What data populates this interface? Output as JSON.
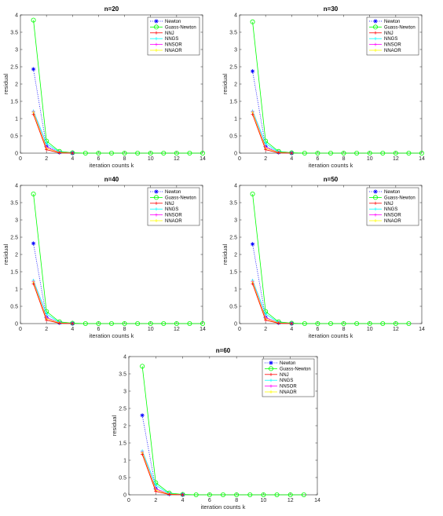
{
  "chart_data": [
    {
      "type": "line",
      "title": "n=20",
      "xlabel": "iteration counts k",
      "ylabel": "residual",
      "xlim": [
        0,
        14
      ],
      "ylim": [
        0,
        4
      ],
      "xticks": [
        0,
        2,
        4,
        6,
        8,
        10,
        12,
        14
      ],
      "yticks": [
        0,
        0.5,
        1,
        1.5,
        2,
        2.5,
        3,
        3.5,
        4
      ],
      "legend_position": "top-right",
      "series": [
        {
          "name": "Newton",
          "color": "#0000ff",
          "marker": "star",
          "line": "dotted",
          "x": [
            1,
            2,
            3,
            4
          ],
          "values": [
            2.43,
            0.2,
            0.02,
            0.0
          ]
        },
        {
          "name": "Guass-Newton",
          "color": "#00ff00",
          "marker": "circle",
          "line": "solid",
          "x": [
            1,
            2,
            3,
            4,
            5,
            6,
            7,
            8,
            9,
            10,
            11,
            12,
            13,
            14
          ],
          "values": [
            3.85,
            0.35,
            0.05,
            0.01,
            0,
            0,
            0,
            0,
            0,
            0,
            0,
            0,
            0,
            0
          ]
        },
        {
          "name": "NNJ",
          "color": "#ff0000",
          "marker": "plus",
          "line": "solid",
          "x": [
            1,
            2,
            3,
            4
          ],
          "values": [
            1.12,
            0.1,
            0.01,
            0.0
          ]
        },
        {
          "name": "NNGS",
          "color": "#00ffff",
          "marker": "plus",
          "line": "solid",
          "x": [
            1,
            2,
            3,
            4
          ],
          "values": [
            1.22,
            0.28,
            0.03,
            0.0
          ]
        },
        {
          "name": "NNSOR",
          "color": "#ff00ff",
          "marker": "plus",
          "line": "solid",
          "x": [
            1,
            2,
            3,
            4
          ],
          "values": [
            1.2,
            0.17,
            0.02,
            0.0
          ]
        },
        {
          "name": "NNAOR",
          "color": "#ffff00",
          "marker": "plus",
          "line": "solid",
          "x": [
            1,
            2,
            3,
            4
          ],
          "values": [
            1.18,
            0.14,
            0.02,
            0.0
          ]
        }
      ]
    },
    {
      "type": "line",
      "title": "n=30",
      "xlabel": "iteration counts k",
      "ylabel": "residual",
      "xlim": [
        0,
        14
      ],
      "ylim": [
        0,
        4
      ],
      "xticks": [
        0,
        2,
        4,
        6,
        8,
        10,
        12,
        14
      ],
      "yticks": [
        0,
        0.5,
        1,
        1.5,
        2,
        2.5,
        3,
        3.5,
        4
      ],
      "legend_position": "top-right",
      "series": [
        {
          "name": "Newton",
          "color": "#0000ff",
          "marker": "star",
          "line": "dotted",
          "x": [
            1,
            2,
            3,
            4
          ],
          "values": [
            2.37,
            0.19,
            0.02,
            0.0
          ]
        },
        {
          "name": "Guass-Newton",
          "color": "#00ff00",
          "marker": "circle",
          "line": "solid",
          "x": [
            1,
            2,
            3,
            4,
            5,
            6,
            7,
            8,
            9,
            10,
            11,
            12,
            13,
            14
          ],
          "values": [
            3.8,
            0.35,
            0.05,
            0.01,
            0,
            0,
            0,
            0,
            0,
            0,
            0,
            0,
            0,
            0
          ]
        },
        {
          "name": "NNJ",
          "color": "#ff0000",
          "marker": "plus",
          "line": "solid",
          "x": [
            1,
            2,
            3,
            4
          ],
          "values": [
            1.12,
            0.1,
            0.01,
            0.0
          ]
        },
        {
          "name": "NNGS",
          "color": "#00ffff",
          "marker": "plus",
          "line": "solid",
          "x": [
            1,
            2,
            3,
            4
          ],
          "values": [
            1.22,
            0.28,
            0.03,
            0.0
          ]
        },
        {
          "name": "NNSOR",
          "color": "#ff00ff",
          "marker": "plus",
          "line": "solid",
          "x": [
            1,
            2,
            3,
            4
          ],
          "values": [
            1.2,
            0.17,
            0.02,
            0.0
          ]
        },
        {
          "name": "NNAOR",
          "color": "#ffff00",
          "marker": "plus",
          "line": "solid",
          "x": [
            1,
            2,
            3,
            4
          ],
          "values": [
            1.18,
            0.14,
            0.02,
            0.0
          ]
        }
      ]
    },
    {
      "type": "line",
      "title": "n=40",
      "xlabel": "iteration counts k",
      "ylabel": "residual",
      "xlim": [
        0,
        14
      ],
      "ylim": [
        0,
        4
      ],
      "xticks": [
        0,
        2,
        4,
        6,
        8,
        10,
        12,
        14
      ],
      "yticks": [
        0,
        0.5,
        1,
        1.5,
        2,
        2.5,
        3,
        3.5,
        4
      ],
      "legend_position": "top-right",
      "series": [
        {
          "name": "Newton",
          "color": "#0000ff",
          "marker": "star",
          "line": "dotted",
          "x": [
            1,
            2,
            3,
            4
          ],
          "values": [
            2.32,
            0.18,
            0.02,
            0.0
          ]
        },
        {
          "name": "Guass-Newton",
          "color": "#00ff00",
          "marker": "circle",
          "line": "solid",
          "x": [
            1,
            2,
            3,
            4,
            5,
            6,
            7,
            8,
            9,
            10,
            11,
            12,
            13,
            14
          ],
          "values": [
            3.75,
            0.35,
            0.05,
            0.01,
            0,
            0,
            0,
            0,
            0,
            0,
            0,
            0,
            0,
            0
          ]
        },
        {
          "name": "NNJ",
          "color": "#ff0000",
          "marker": "plus",
          "line": "solid",
          "x": [
            1,
            2,
            3,
            4
          ],
          "values": [
            1.15,
            0.1,
            0.01,
            0.0
          ]
        },
        {
          "name": "NNGS",
          "color": "#00ffff",
          "marker": "plus",
          "line": "solid",
          "x": [
            1,
            2,
            3,
            4
          ],
          "values": [
            1.25,
            0.28,
            0.03,
            0.0
          ]
        },
        {
          "name": "NNSOR",
          "color": "#ff00ff",
          "marker": "plus",
          "line": "solid",
          "x": [
            1,
            2,
            3,
            4
          ],
          "values": [
            1.22,
            0.17,
            0.02,
            0.0
          ]
        },
        {
          "name": "NNAOR",
          "color": "#ffff00",
          "marker": "plus",
          "line": "solid",
          "x": [
            1,
            2,
            3,
            4
          ],
          "values": [
            1.2,
            0.14,
            0.02,
            0.0
          ]
        }
      ]
    },
    {
      "type": "line",
      "title": "n=50",
      "xlabel": "iteration counts k",
      "ylabel": "residual",
      "xlim": [
        0,
        14
      ],
      "ylim": [
        0,
        4
      ],
      "xticks": [
        0,
        2,
        4,
        6,
        8,
        10,
        12,
        14
      ],
      "yticks": [
        0,
        0.5,
        1,
        1.5,
        2,
        2.5,
        3,
        3.5,
        4
      ],
      "legend_position": "top-right",
      "series": [
        {
          "name": "Newton",
          "color": "#0000ff",
          "marker": "star",
          "line": "dotted",
          "x": [
            1,
            2,
            3,
            4
          ],
          "values": [
            2.3,
            0.18,
            0.02,
            0.0
          ]
        },
        {
          "name": "Guass-Newton",
          "color": "#00ff00",
          "marker": "circle",
          "line": "solid",
          "x": [
            1,
            2,
            3,
            4,
            5,
            6,
            7,
            8,
            9,
            10,
            11,
            12,
            13
          ],
          "values": [
            3.75,
            0.35,
            0.05,
            0.01,
            0,
            0,
            0,
            0,
            0,
            0,
            0,
            0,
            0
          ]
        },
        {
          "name": "NNJ",
          "color": "#ff0000",
          "marker": "plus",
          "line": "solid",
          "x": [
            1,
            2,
            3,
            4
          ],
          "values": [
            1.15,
            0.1,
            0.01,
            0.0
          ]
        },
        {
          "name": "NNGS",
          "color": "#00ffff",
          "marker": "plus",
          "line": "solid",
          "x": [
            1,
            2,
            3,
            4
          ],
          "values": [
            1.25,
            0.28,
            0.03,
            0.0
          ]
        },
        {
          "name": "NNSOR",
          "color": "#ff00ff",
          "marker": "plus",
          "line": "solid",
          "x": [
            1,
            2,
            3,
            4
          ],
          "values": [
            1.22,
            0.17,
            0.02,
            0.0
          ]
        },
        {
          "name": "NNAOR",
          "color": "#ffff00",
          "marker": "plus",
          "line": "solid",
          "x": [
            1,
            2,
            3,
            4
          ],
          "values": [
            1.2,
            0.14,
            0.02,
            0.0
          ]
        }
      ]
    },
    {
      "type": "line",
      "title": "n=60",
      "xlabel": "iteration counts k",
      "ylabel": "residual",
      "xlim": [
        0,
        14
      ],
      "ylim": [
        0,
        4
      ],
      "xticks": [
        0,
        2,
        4,
        6,
        8,
        10,
        12,
        14
      ],
      "yticks": [
        0,
        0.5,
        1,
        1.5,
        2,
        2.5,
        3,
        3.5,
        4
      ],
      "legend_position": "top-right",
      "series": [
        {
          "name": "Newton",
          "color": "#0000ff",
          "marker": "star",
          "line": "dotted",
          "x": [
            1,
            2,
            3,
            4
          ],
          "values": [
            2.3,
            0.18,
            0.02,
            0.0
          ]
        },
        {
          "name": "Guass-Newton",
          "color": "#00ff00",
          "marker": "circle",
          "line": "solid",
          "x": [
            1,
            2,
            3,
            4,
            5,
            6,
            7,
            8,
            9,
            10,
            11,
            12,
            13
          ],
          "values": [
            3.72,
            0.35,
            0.05,
            0.01,
            0,
            0,
            0,
            0,
            0,
            0,
            0,
            0,
            0
          ]
        },
        {
          "name": "NNJ",
          "color": "#ff0000",
          "marker": "plus",
          "line": "solid",
          "x": [
            1,
            2,
            3,
            4
          ],
          "values": [
            1.17,
            0.1,
            0.01,
            0.0
          ]
        },
        {
          "name": "NNGS",
          "color": "#00ffff",
          "marker": "plus",
          "line": "solid",
          "x": [
            1,
            2,
            3,
            4
          ],
          "values": [
            1.27,
            0.28,
            0.03,
            0.0
          ]
        },
        {
          "name": "NNSOR",
          "color": "#ff00ff",
          "marker": "plus",
          "line": "solid",
          "x": [
            1,
            2,
            3,
            4
          ],
          "values": [
            1.24,
            0.17,
            0.02,
            0.0
          ]
        },
        {
          "name": "NNAOR",
          "color": "#ffff00",
          "marker": "plus",
          "line": "solid",
          "x": [
            1,
            2,
            3,
            4
          ],
          "values": [
            1.22,
            0.14,
            0.02,
            0.0
          ]
        }
      ]
    }
  ]
}
